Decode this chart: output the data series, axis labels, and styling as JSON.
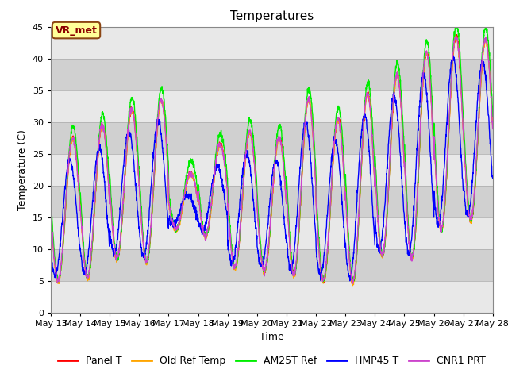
{
  "title": "Temperatures",
  "xlabel": "Time",
  "ylabel": "Temperature (C)",
  "ylim": [
    0,
    45
  ],
  "x_tick_labels": [
    "May 13",
    "May 14",
    "May 15",
    "May 16",
    "May 17",
    "May 18",
    "May 19",
    "May 20",
    "May 21",
    "May 22",
    "May 23",
    "May 24",
    "May 25",
    "May 26",
    "May 27",
    "May 28"
  ],
  "annotation_text": "VR_met",
  "series_colors": {
    "Panel T": "#FF0000",
    "Old Ref Temp": "#FFA500",
    "AM25T Ref": "#00EE00",
    "HMP45 T": "#0000FF",
    "CNR1 PRT": "#CC44CC"
  },
  "series_order": [
    "Panel T",
    "Old Ref Temp",
    "AM25T Ref",
    "HMP45 T",
    "CNR1 PRT"
  ],
  "background_color": "#FFFFFF",
  "plot_bg_color": "#D8D8D8",
  "band_color_light": "#E8E8E8",
  "band_color_dark": "#D0D0D0",
  "title_fontsize": 11,
  "label_fontsize": 9,
  "tick_fontsize": 8,
  "legend_fontsize": 9,
  "line_width": 1.0,
  "n_points_per_day": 144,
  "n_days": 15,
  "daily_min_base": [
    5.0,
    5.5,
    8.5,
    8.0,
    13.0,
    12.0,
    7.0,
    6.5,
    6.0,
    5.0,
    4.8,
    9.0,
    8.5,
    13.0,
    14.5
  ],
  "daily_max_base": [
    27.5,
    29.5,
    32.0,
    33.5,
    22.0,
    26.5,
    28.5,
    27.5,
    33.5,
    30.5,
    34.5,
    37.5,
    41.0,
    43.5,
    43.0
  ],
  "yticks": [
    0,
    5,
    10,
    15,
    20,
    25,
    30,
    35,
    40,
    45
  ]
}
